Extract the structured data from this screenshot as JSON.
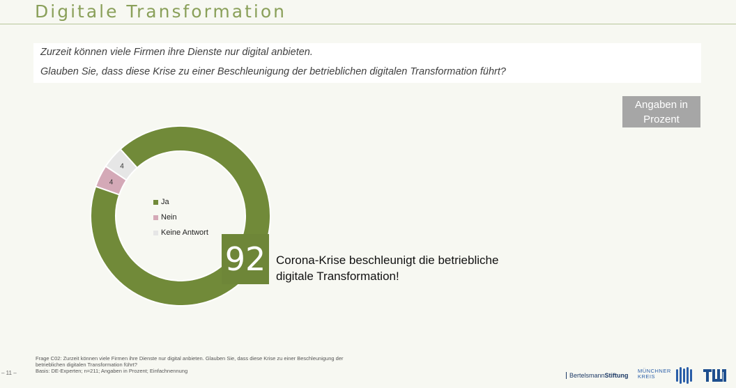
{
  "title": "Digitale Transformation",
  "question": {
    "line1": "Zurzeit können viele Firmen ihre Dienste nur digital anbieten.",
    "line2": "Glauben Sie, dass diese Krise zu einer Beschleunigung der betrieblichen digitalen Transformation führt?"
  },
  "unit_badge": {
    "line1": "Angaben in",
    "line2": "Prozent"
  },
  "highlight": {
    "value": "92",
    "line1": "Corona-Krise beschleunigt die betriebliche",
    "line2": "digitale Transformation!"
  },
  "colors": {
    "ja": "#718a39",
    "nein": "#d4a9b7",
    "keine_antwort": "#e6e6e6",
    "title": "#8aa05a",
    "badge": "#a6a6a6"
  },
  "chart_data": {
    "type": "pie",
    "donut": true,
    "series": [
      {
        "name": "Ja",
        "value": 92,
        "color": "#718a39",
        "label": ""
      },
      {
        "name": "Nein",
        "value": 4,
        "color": "#d4a9b7",
        "label": "4"
      },
      {
        "name": "Keine Antwort",
        "value": 4,
        "color": "#e6e6e6",
        "label": "4"
      }
    ],
    "legend": [
      "Ja",
      "Nein",
      "Keine Antwort"
    ],
    "legend_placement": "center"
  },
  "footnote": {
    "line1": "Frage C02: Zurzeit können viele Firmen ihre Dienste nur digital anbieten. Glauben Sie, dass diese Krise zu einer Beschleunigung der",
    "line2": "betrieblichen digitalen Transformation führt?",
    "line3": "Basis: DE-Experten; n=211; Angaben in Prozent; Einfachnennung"
  },
  "page_number": "– 11 –",
  "logos": {
    "bertelsmann_a": "Bertelsmann",
    "bertelsmann_b": "Stiftung",
    "mk_line1": "MÜNCHNER",
    "mk_line2": "KREIS"
  }
}
